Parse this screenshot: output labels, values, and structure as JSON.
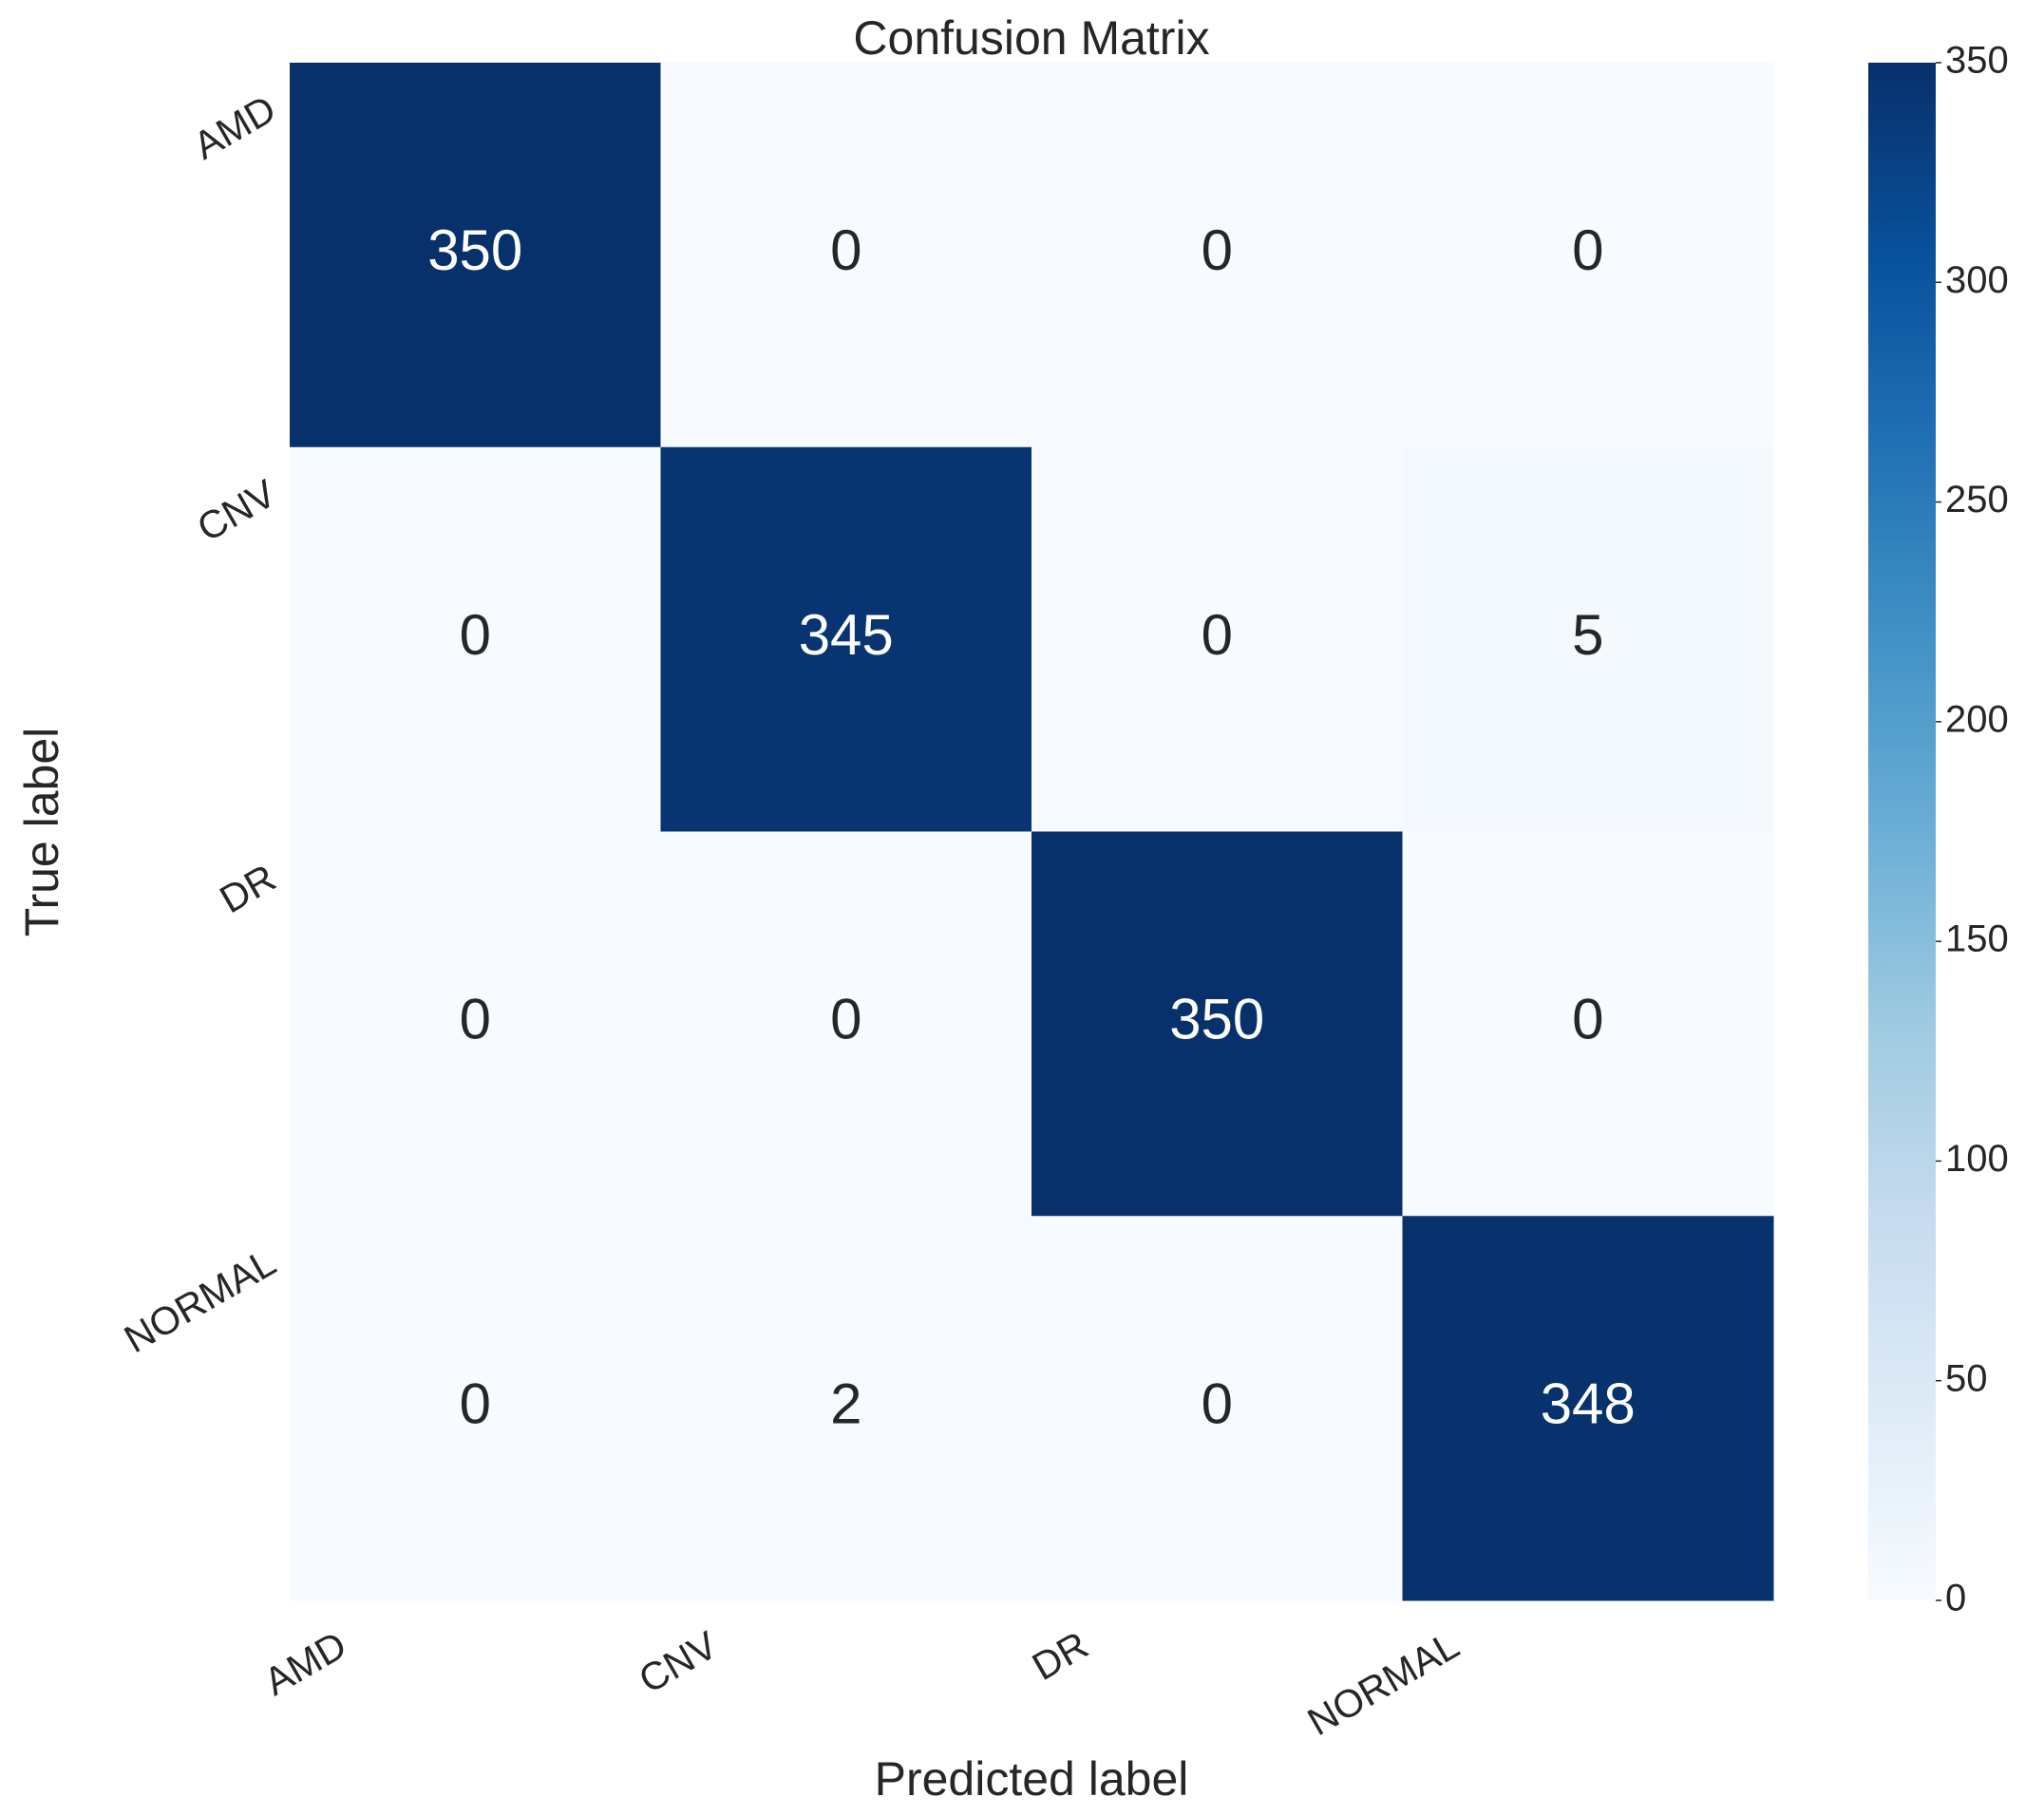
{
  "chart_data": {
    "type": "heatmap",
    "title": "Confusion Matrix",
    "x_label": "Predicted label",
    "y_label": "True label",
    "x_categories": [
      "AMD",
      "CNV",
      "DR",
      "NORMAL"
    ],
    "y_categories": [
      "AMD",
      "CNV",
      "DR",
      "NORMAL"
    ],
    "values": [
      [
        350,
        0,
        0,
        0
      ],
      [
        0,
        345,
        0,
        5
      ],
      [
        0,
        0,
        350,
        0
      ],
      [
        0,
        2,
        0,
        348
      ]
    ],
    "colormap": [
      "#f7fbff",
      "#deebf7",
      "#c6dbef",
      "#9ecae1",
      "#6baed6",
      "#4292c6",
      "#2171b5",
      "#08519c",
      "#08306b"
    ],
    "zlim": [
      0,
      350
    ],
    "zticks": [
      0,
      50,
      100,
      150,
      200,
      250,
      300,
      350
    ]
  }
}
